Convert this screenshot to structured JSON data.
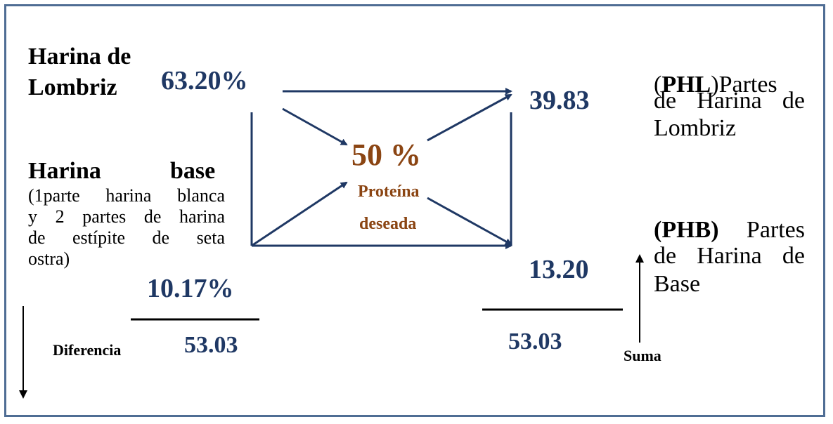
{
  "left": {
    "lombriz_label": "Harina de Lombriz",
    "lombriz_label_line1": "Harina de",
    "lombriz_label_line2": "Lombriz",
    "lombriz_value": "63.20%",
    "base_label_word1": "Harina",
    "base_label_word2": "base",
    "base_description": "(1parte harina blanca y 2 partes de harina de estípite de seta ostra)",
    "base_description_lines": [
      "(1parte harina blanca",
      "y 2 partes de harina",
      "de estípite de seta",
      "ostra)"
    ],
    "base_value": "10.17%",
    "difference_label": "Diferencia",
    "difference_value": "53.03"
  },
  "center": {
    "target_value": "50 %",
    "target_label_line1": "Proteína",
    "target_label_line2": "deseada"
  },
  "right": {
    "phl_value": "39.83",
    "phb_value": "13.20",
    "sum_value": "53.03",
    "sum_label": "Suma",
    "phl_abbr": "PHL",
    "phl_text_line1": "Partes",
    "phl_text_line2": "de Harina de",
    "phl_text_line3": "Lombriz",
    "phb_abbr": "(PHB)",
    "phb_text_line1": "Partes",
    "phb_text_line2": "de Harina de",
    "phb_text_line3": "Base"
  },
  "colors": {
    "values": "#1f3864",
    "target": "#8b4513",
    "lines": "#1f3864",
    "frame": "#4f6d94"
  }
}
